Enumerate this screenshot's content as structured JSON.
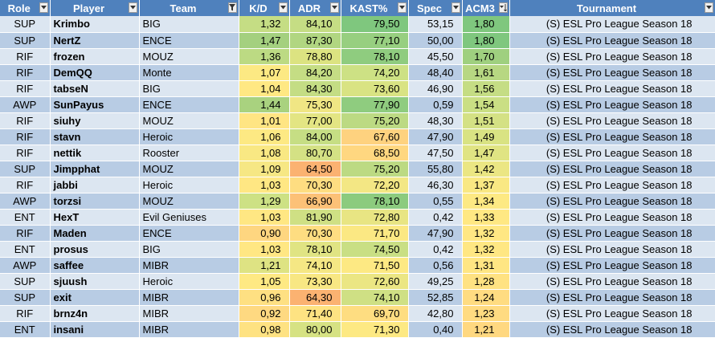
{
  "headers": {
    "role": "Role",
    "player": "Player",
    "team": "Team",
    "kd": "K/D",
    "adr": "ADR",
    "kast": "KAST%",
    "spec": "Spec",
    "acm": "ACM3",
    "tournament": "Tournament"
  },
  "filter_icons": {
    "role": "dropdown-arrow-icon",
    "player": "dropdown-arrow-icon",
    "team": "filter-funnel-icon",
    "kd": "dropdown-arrow-icon",
    "adr": "dropdown-arrow-icon",
    "kast": "dropdown-arrow-icon",
    "spec": "dropdown-arrow-icon",
    "acm": "sort-descending-icon",
    "tournament": "dropdown-arrow-icon"
  },
  "colors": {
    "header_bg": "#4f81bd",
    "row_odd": "#dce6f1",
    "row_even": "#b8cce4",
    "scale_low": "#f8a96f",
    "scale_mid": "#ffeb84",
    "scale_high": "#63be7b"
  },
  "rows": [
    {
      "role": "SUP",
      "player": "Krimbo",
      "team": "BIG",
      "kd": "1,32",
      "adr": "84,10",
      "kast": "79,50",
      "spec": "53,15",
      "acm": "1,80",
      "tournament": "(S) ESL Pro League Season 18",
      "kd_c": "#c5dd84",
      "adr_c": "#c5dd84",
      "kast_c": "#7fc77e",
      "acm_c": "#7fc77e"
    },
    {
      "role": "SUP",
      "player": "NertZ",
      "team": "ENCE",
      "kd": "1,47",
      "adr": "87,30",
      "kast": "77,10",
      "spec": "50,00",
      "acm": "1,80",
      "tournament": "(S) ESL Pro League Season 18",
      "kd_c": "#a4d07f",
      "adr_c": "#b1d681",
      "kast_c": "#97cf80",
      "acm_c": "#7fc77e"
    },
    {
      "role": "RIF",
      "player": "frozen",
      "team": "MOUZ",
      "kd": "1,36",
      "adr": "78,80",
      "kast": "78,10",
      "spec": "45,50",
      "acm": "1,70",
      "tournament": "(S) ESL Pro League Season 18",
      "kd_c": "#bcda83",
      "adr_c": "#dce381",
      "kast_c": "#8fcc7f",
      "acm_c": "#9fd07f"
    },
    {
      "role": "RIF",
      "player": "DemQQ",
      "team": "Monte",
      "kd": "1,07",
      "adr": "84,20",
      "kast": "74,20",
      "spec": "48,40",
      "acm": "1,61",
      "tournament": "(S) ESL Pro League Season 18",
      "kd_c": "#fce983",
      "adr_c": "#c5dd84",
      "kast_c": "#cde184",
      "acm_c": "#b7d782"
    },
    {
      "role": "RIF",
      "player": "tabseN",
      "team": "BIG",
      "kd": "1,04",
      "adr": "84,30",
      "kast": "73,60",
      "spec": "46,90",
      "acm": "1,56",
      "tournament": "(S) ESL Pro League Season 18",
      "kd_c": "#ffe883",
      "adr_c": "#c4dd84",
      "kast_c": "#d9e383",
      "acm_c": "#c5dd84"
    },
    {
      "role": "AWP",
      "player": "SunPayus",
      "team": "ENCE",
      "kd": "1,44",
      "adr": "75,30",
      "kast": "77,90",
      "spec": "0,59",
      "acm": "1,54",
      "tournament": "(S) ESL Pro League Season 18",
      "kd_c": "#a9d27f",
      "adr_c": "#f0e684",
      "kast_c": "#8fcc7f",
      "acm_c": "#cadf84"
    },
    {
      "role": "RIF",
      "player": "siuhy",
      "team": "MOUZ",
      "kd": "1,01",
      "adr": "77,00",
      "kast": "75,20",
      "spec": "48,30",
      "acm": "1,51",
      "tournament": "(S) ESL Pro League Season 18",
      "kd_c": "#ffe583",
      "adr_c": "#e3e583",
      "kast_c": "#bcda83",
      "acm_c": "#d4e184"
    },
    {
      "role": "RIF",
      "player": "stavn",
      "team": "Heroic",
      "kd": "1,06",
      "adr": "84,00",
      "kast": "67,60",
      "spec": "47,90",
      "acm": "1,49",
      "tournament": "(S) ESL Pro League Season 18",
      "kd_c": "#fde983",
      "adr_c": "#c6de84",
      "kast_c": "#fed27f",
      "acm_c": "#d9e383"
    },
    {
      "role": "RIF",
      "player": "nettik",
      "team": "Rooster",
      "kd": "1,08",
      "adr": "80,70",
      "kast": "68,50",
      "spec": "47,50",
      "acm": "1,47",
      "tournament": "(S) ESL Pro League Season 18",
      "kd_c": "#f9e883",
      "adr_c": "#d4e184",
      "kast_c": "#ffd780",
      "acm_c": "#e0e483"
    },
    {
      "role": "SUP",
      "player": "Jimpphat",
      "team": "MOUZ",
      "kd": "1,09",
      "adr": "64,50",
      "kast": "75,20",
      "spec": "55,80",
      "acm": "1,42",
      "tournament": "(S) ESL Pro League Season 18",
      "kd_c": "#f6e784",
      "adr_c": "#fbb271",
      "kast_c": "#bcda83",
      "acm_c": "#ebe683"
    },
    {
      "role": "RIF",
      "player": "jabbi",
      "team": "Heroic",
      "kd": "1,03",
      "adr": "70,30",
      "kast": "72,20",
      "spec": "46,30",
      "acm": "1,37",
      "tournament": "(S) ESL Pro League Season 18",
      "kd_c": "#ffe783",
      "adr_c": "#fedd81",
      "kast_c": "#f3e784",
      "acm_c": "#f9e883"
    },
    {
      "role": "AWP",
      "player": "torzsi",
      "team": "MOUZ",
      "kd": "1,29",
      "adr": "66,90",
      "kast": "78,10",
      "spec": "0,55",
      "acm": "1,34",
      "tournament": "(S) ESL Pro League Season 18",
      "kd_c": "#cde184",
      "adr_c": "#fcc177",
      "kast_c": "#8ccb7e",
      "acm_c": "#fde983"
    },
    {
      "role": "ENT",
      "player": "HexT",
      "team": "Evil Geniuses",
      "kd": "1,03",
      "adr": "81,90",
      "kast": "72,80",
      "spec": "0,42",
      "acm": "1,33",
      "tournament": "(S) ESL Pro League Season 18",
      "kd_c": "#ffe783",
      "adr_c": "#cfe084",
      "kast_c": "#e8e583",
      "acm_c": "#ffe883"
    },
    {
      "role": "RIF",
      "player": "Maden",
      "team": "ENCE",
      "kd": "0,90",
      "adr": "70,30",
      "kast": "71,70",
      "spec": "47,90",
      "acm": "1,32",
      "tournament": "(S) ESL Pro League Season 18",
      "kd_c": "#fed680",
      "adr_c": "#fedd81",
      "kast_c": "#fbe883",
      "acm_c": "#ffe783"
    },
    {
      "role": "ENT",
      "player": "prosus",
      "team": "BIG",
      "kd": "1,03",
      "adr": "78,10",
      "kast": "74,50",
      "spec": "0,42",
      "acm": "1,32",
      "tournament": "(S) ESL Pro League Season 18",
      "kd_c": "#ffe783",
      "adr_c": "#e0e483",
      "kast_c": "#c9df84",
      "acm_c": "#ffe783"
    },
    {
      "role": "AWP",
      "player": "saffee",
      "team": "MIBR",
      "kd": "1,21",
      "adr": "74,10",
      "kast": "71,50",
      "spec": "0,56",
      "acm": "1,31",
      "tournament": "(S) ESL Pro League Season 18",
      "kd_c": "#dee383",
      "adr_c": "#f5e784",
      "kast_c": "#fde983",
      "acm_c": "#ffe683"
    },
    {
      "role": "SUP",
      "player": "sjuush",
      "team": "Heroic",
      "kd": "1,05",
      "adr": "73,30",
      "kast": "72,60",
      "spec": "49,25",
      "acm": "1,28",
      "tournament": "(S) ESL Pro League Season 18",
      "kd_c": "#fee983",
      "adr_c": "#f8e783",
      "kast_c": "#ebe683",
      "acm_c": "#ffe282"
    },
    {
      "role": "SUP",
      "player": "exit",
      "team": "MIBR",
      "kd": "0,96",
      "adr": "64,30",
      "kast": "74,10",
      "spec": "52,85",
      "acm": "1,24",
      "tournament": "(S) ESL Pro League Season 18",
      "kd_c": "#fee082",
      "adr_c": "#fbb271",
      "kast_c": "#cfe084",
      "acm_c": "#ffdc81"
    },
    {
      "role": "RIF",
      "player": "brnz4n",
      "team": "MIBR",
      "kd": "0,92",
      "adr": "71,40",
      "kast": "69,70",
      "spec": "42,80",
      "acm": "1,23",
      "tournament": "(S) ESL Pro League Season 18",
      "kd_c": "#fed981",
      "adr_c": "#fee382",
      "kast_c": "#fedd81",
      "acm_c": "#ffdb81"
    },
    {
      "role": "ENT",
      "player": "insani",
      "team": "MIBR",
      "kd": "0,98",
      "adr": "80,00",
      "kast": "71,30",
      "spec": "0,40",
      "acm": "1,21",
      "tournament": "(S) ESL Pro League Season 18",
      "kd_c": "#fee282",
      "adr_c": "#d6e283",
      "kast_c": "#fde983",
      "acm_c": "#ffd880"
    }
  ]
}
